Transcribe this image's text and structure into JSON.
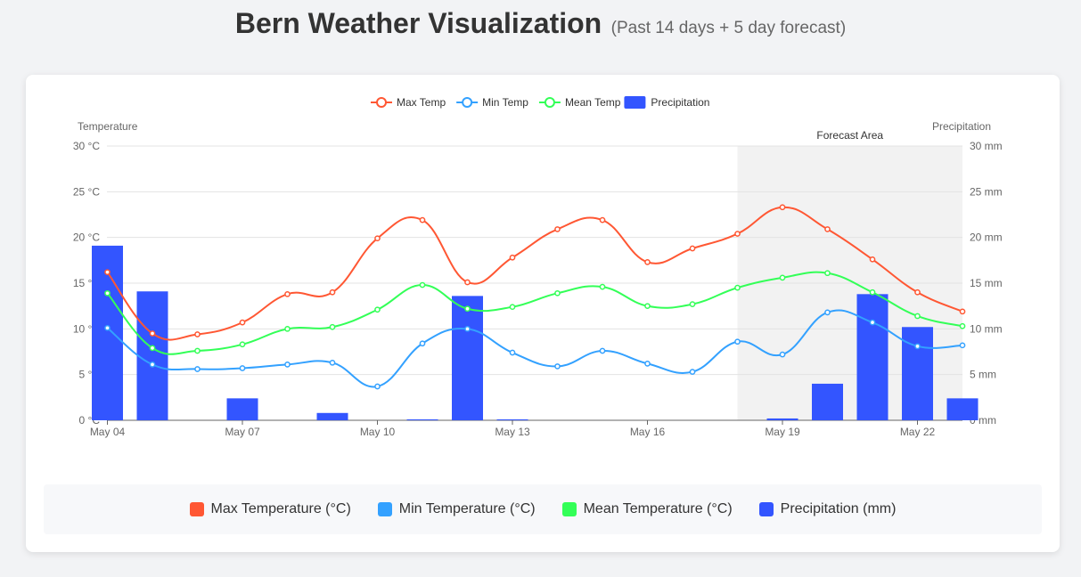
{
  "page": {
    "title": "Bern Weather Visualization",
    "subtitle": "(Past 14 days + 5 day forecast)"
  },
  "colors": {
    "max_temp": "#ff5733",
    "min_temp": "#33a1ff",
    "mean_temp": "#33ff57",
    "precipitation": "#3355ff",
    "forecast_shade": "#f2f2f2"
  },
  "chart_data": {
    "type": "line",
    "x": [
      "May 04",
      "May 05",
      "May 06",
      "May 07",
      "May 08",
      "May 09",
      "May 10",
      "May 11",
      "May 12",
      "May 13",
      "May 14",
      "May 15",
      "May 16",
      "May 17",
      "May 18",
      "May 19",
      "May 20",
      "May 21",
      "May 22",
      "May 23"
    ],
    "x_tick_labels": [
      "May 04",
      "May 07",
      "May 10",
      "May 13",
      "May 16",
      "May 19",
      "May 22"
    ],
    "series": [
      {
        "name": "Max Temp",
        "type": "line",
        "axis": "left",
        "values": [
          16.2,
          9.5,
          9.4,
          10.7,
          13.8,
          14.0,
          19.9,
          21.9,
          15.1,
          17.8,
          20.9,
          21.9,
          17.3,
          18.8,
          20.4,
          23.3,
          20.9,
          17.6,
          14.0,
          11.9
        ]
      },
      {
        "name": "Min Temp",
        "type": "line",
        "axis": "left",
        "values": [
          10.1,
          6.1,
          5.6,
          5.7,
          6.1,
          6.3,
          3.7,
          8.4,
          10.0,
          7.4,
          5.9,
          7.6,
          6.2,
          5.3,
          8.6,
          7.2,
          11.8,
          10.7,
          8.1,
          8.2
        ]
      },
      {
        "name": "Mean Temp",
        "type": "line",
        "axis": "left",
        "values": [
          13.9,
          7.9,
          7.6,
          8.3,
          10.0,
          10.2,
          12.1,
          14.8,
          12.2,
          12.4,
          13.9,
          14.6,
          12.5,
          12.7,
          14.5,
          15.6,
          16.1,
          14.0,
          11.4,
          10.3
        ]
      },
      {
        "name": "Precipitation",
        "type": "bar",
        "axis": "right",
        "values": [
          19.1,
          14.1,
          0,
          2.4,
          0,
          0.8,
          0,
          0.1,
          13.6,
          0.1,
          0,
          0,
          0,
          0,
          0,
          0.2,
          4.0,
          13.8,
          10.2,
          2.4
        ]
      }
    ],
    "left_axis": {
      "label": "Temperature",
      "min": 0,
      "max": 30,
      "ticks": [
        0,
        5,
        10,
        15,
        20,
        25,
        30
      ],
      "unit": "°C"
    },
    "right_axis": {
      "label": "Precipitation",
      "min": 0,
      "max": 30,
      "ticks": [
        0,
        5,
        10,
        15,
        20,
        25,
        30
      ],
      "unit": "mm"
    },
    "forecast": {
      "label": "Forecast Area",
      "start": "May 18",
      "end": "May 23"
    },
    "legend_position": "top-center",
    "grid": true
  },
  "bottom_legend": {
    "items": [
      {
        "label": "Max Temperature (°C)",
        "color": "#ff5733"
      },
      {
        "label": "Min Temperature (°C)",
        "color": "#33a1ff"
      },
      {
        "label": "Mean Temperature (°C)",
        "color": "#33ff57"
      },
      {
        "label": "Precipitation (mm)",
        "color": "#3355ff"
      }
    ]
  }
}
